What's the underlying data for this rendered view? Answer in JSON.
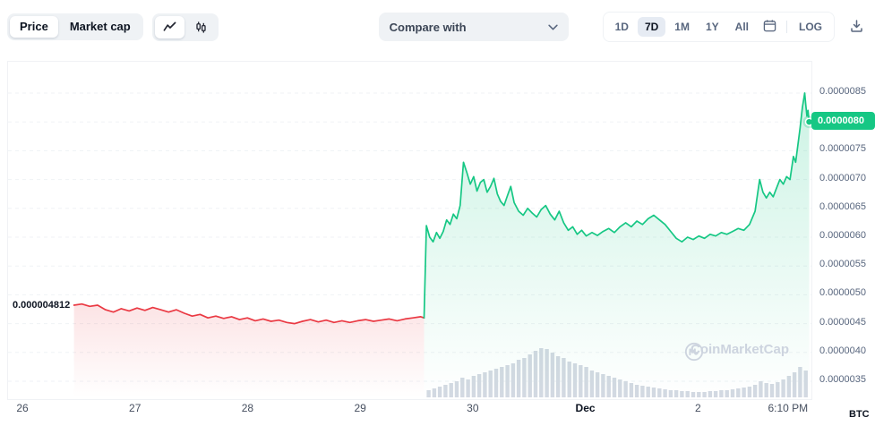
{
  "toolbar": {
    "price_label": "Price",
    "market_cap_label": "Market cap",
    "selected_view": "Price",
    "selected_chart_type": "line",
    "compare_with_label": "Compare with",
    "ranges": [
      "1D",
      "7D",
      "1M",
      "1Y",
      "All"
    ],
    "selected_range": "7D",
    "log_label": "LOG"
  },
  "chart": {
    "watermark": "CoinMarketCap",
    "colors": {
      "up": "#16c784",
      "down": "#ea3943",
      "grid": "#eff2f5",
      "volume": "#d3d9e2",
      "axis_text": "#58667e"
    },
    "icons": {
      "chart_type_line": "line-chart-icon",
      "chart_type_candles": "candlestick-icon",
      "dropdown": "chevron-down-icon",
      "calendar": "calendar-icon",
      "download": "download-icon",
      "watermark_logo": "coinmarketcap-logo"
    }
  },
  "chart_data": {
    "type": "line",
    "ylabel": "BTC",
    "x_unit": "days (Nov 26 - Dec 2)",
    "y_unit": "price in BTC, values shown x 1e-7",
    "x_domain": [
      0,
      7.0
    ],
    "y_domain": [
      3.3,
      8.8
    ],
    "grid": true,
    "y_ticks": [
      {
        "label": "0.0000085",
        "value": 8.5
      },
      {
        "label": "0.0000080",
        "value": 8.0
      },
      {
        "label": "0.0000075",
        "value": 7.5
      },
      {
        "label": "0.0000070",
        "value": 7.0
      },
      {
        "label": "0.0000065",
        "value": 6.5
      },
      {
        "label": "0.0000060",
        "value": 6.0
      },
      {
        "label": "0.0000055",
        "value": 5.5
      },
      {
        "label": "0.0000050",
        "value": 5.0
      },
      {
        "label": "0.0000045",
        "value": 4.5
      },
      {
        "label": "0.0000040",
        "value": 4.0
      },
      {
        "label": "0.0000035",
        "value": 3.5
      }
    ],
    "x_ticks": [
      {
        "label": "26",
        "x": 0
      },
      {
        "label": "27",
        "x": 1
      },
      {
        "label": "28",
        "x": 2
      },
      {
        "label": "29",
        "x": 3
      },
      {
        "label": "30",
        "x": 4
      },
      {
        "label": "Dec",
        "x": 5,
        "bold": true
      },
      {
        "label": "2",
        "x": 6
      },
      {
        "label": "6:10 PM",
        "x": 6.8
      }
    ],
    "series": [
      {
        "name": "price-down-segment",
        "trend": "down",
        "color": "#ea3943",
        "points": [
          [
            0.45,
            4.82
          ],
          [
            0.52,
            4.84
          ],
          [
            0.59,
            4.8
          ],
          [
            0.66,
            4.82
          ],
          [
            0.73,
            4.74
          ],
          [
            0.8,
            4.7
          ],
          [
            0.87,
            4.76
          ],
          [
            0.94,
            4.72
          ],
          [
            1.01,
            4.77
          ],
          [
            1.08,
            4.73
          ],
          [
            1.15,
            4.78
          ],
          [
            1.22,
            4.74
          ],
          [
            1.29,
            4.7
          ],
          [
            1.36,
            4.74
          ],
          [
            1.43,
            4.68
          ],
          [
            1.5,
            4.63
          ],
          [
            1.57,
            4.66
          ],
          [
            1.64,
            4.6
          ],
          [
            1.71,
            4.63
          ],
          [
            1.78,
            4.59
          ],
          [
            1.85,
            4.62
          ],
          [
            1.92,
            4.57
          ],
          [
            1.99,
            4.6
          ],
          [
            2.06,
            4.55
          ],
          [
            2.13,
            4.58
          ],
          [
            2.2,
            4.54
          ],
          [
            2.27,
            4.56
          ],
          [
            2.34,
            4.52
          ],
          [
            2.41,
            4.5
          ],
          [
            2.48,
            4.54
          ],
          [
            2.55,
            4.57
          ],
          [
            2.62,
            4.53
          ],
          [
            2.69,
            4.56
          ],
          [
            2.76,
            4.52
          ],
          [
            2.83,
            4.55
          ],
          [
            2.9,
            4.52
          ],
          [
            2.97,
            4.55
          ],
          [
            3.04,
            4.57
          ],
          [
            3.11,
            4.54
          ],
          [
            3.18,
            4.56
          ],
          [
            3.25,
            4.58
          ],
          [
            3.32,
            4.55
          ],
          [
            3.39,
            4.58
          ],
          [
            3.46,
            4.6
          ],
          [
            3.53,
            4.62
          ],
          [
            3.56,
            4.6
          ]
        ]
      },
      {
        "name": "price-up-segment",
        "trend": "up",
        "color": "#16c784",
        "points": [
          [
            3.56,
            4.6
          ],
          [
            3.58,
            6.2
          ],
          [
            3.61,
            6.0
          ],
          [
            3.64,
            5.92
          ],
          [
            3.67,
            6.08
          ],
          [
            3.7,
            5.98
          ],
          [
            3.73,
            6.1
          ],
          [
            3.76,
            6.3
          ],
          [
            3.79,
            6.22
          ],
          [
            3.82,
            6.4
          ],
          [
            3.85,
            6.32
          ],
          [
            3.88,
            6.55
          ],
          [
            3.91,
            7.3
          ],
          [
            3.94,
            7.12
          ],
          [
            3.97,
            6.92
          ],
          [
            4.0,
            7.05
          ],
          [
            4.03,
            6.8
          ],
          [
            4.06,
            6.95
          ],
          [
            4.09,
            7.0
          ],
          [
            4.12,
            6.78
          ],
          [
            4.15,
            6.88
          ],
          [
            4.18,
            7.02
          ],
          [
            4.21,
            6.75
          ],
          [
            4.24,
            6.62
          ],
          [
            4.27,
            6.55
          ],
          [
            4.3,
            6.72
          ],
          [
            4.33,
            6.88
          ],
          [
            4.36,
            6.6
          ],
          [
            4.4,
            6.45
          ],
          [
            4.44,
            6.38
          ],
          [
            4.48,
            6.5
          ],
          [
            4.52,
            6.42
          ],
          [
            4.56,
            6.35
          ],
          [
            4.6,
            6.48
          ],
          [
            4.64,
            6.55
          ],
          [
            4.68,
            6.4
          ],
          [
            4.72,
            6.3
          ],
          [
            4.76,
            6.45
          ],
          [
            4.8,
            6.25
          ],
          [
            4.84,
            6.12
          ],
          [
            4.88,
            6.18
          ],
          [
            4.92,
            6.05
          ],
          [
            4.96,
            6.12
          ],
          [
            5.0,
            6.02
          ],
          [
            5.05,
            6.08
          ],
          [
            5.1,
            6.03
          ],
          [
            5.15,
            6.1
          ],
          [
            5.2,
            6.15
          ],
          [
            5.25,
            6.08
          ],
          [
            5.3,
            6.18
          ],
          [
            5.35,
            6.25
          ],
          [
            5.4,
            6.18
          ],
          [
            5.45,
            6.28
          ],
          [
            5.5,
            6.22
          ],
          [
            5.55,
            6.32
          ],
          [
            5.6,
            6.38
          ],
          [
            5.65,
            6.3
          ],
          [
            5.7,
            6.22
          ],
          [
            5.75,
            6.1
          ],
          [
            5.8,
            5.98
          ],
          [
            5.85,
            5.92
          ],
          [
            5.9,
            6.0
          ],
          [
            5.95,
            5.96
          ],
          [
            6.0,
            6.02
          ],
          [
            6.05,
            5.98
          ],
          [
            6.1,
            6.05
          ],
          [
            6.15,
            6.02
          ],
          [
            6.2,
            6.08
          ],
          [
            6.25,
            6.05
          ],
          [
            6.3,
            6.1
          ],
          [
            6.35,
            6.15
          ],
          [
            6.4,
            6.12
          ],
          [
            6.45,
            6.22
          ],
          [
            6.5,
            6.45
          ],
          [
            6.54,
            7.0
          ],
          [
            6.57,
            6.78
          ],
          [
            6.6,
            6.68
          ],
          [
            6.63,
            6.78
          ],
          [
            6.66,
            6.7
          ],
          [
            6.69,
            6.85
          ],
          [
            6.72,
            7.0
          ],
          [
            6.75,
            6.92
          ],
          [
            6.78,
            7.05
          ],
          [
            6.81,
            7.0
          ],
          [
            6.84,
            7.4
          ],
          [
            6.86,
            7.3
          ],
          [
            6.88,
            7.6
          ],
          [
            6.9,
            7.9
          ],
          [
            6.92,
            8.25
          ],
          [
            6.94,
            8.5
          ],
          [
            6.95,
            8.3
          ],
          [
            6.96,
            8.1
          ],
          [
            6.97,
            8.2
          ],
          [
            6.98,
            8.0
          ]
        ]
      }
    ],
    "volume_bars": {
      "color": "#d3d9e2",
      "points": [
        [
          3.6,
          8
        ],
        [
          3.65,
          10
        ],
        [
          3.7,
          12
        ],
        [
          3.75,
          14
        ],
        [
          3.8,
          16
        ],
        [
          3.85,
          18
        ],
        [
          3.9,
          22
        ],
        [
          3.95,
          20
        ],
        [
          4.0,
          24
        ],
        [
          4.05,
          26
        ],
        [
          4.1,
          28
        ],
        [
          4.15,
          30
        ],
        [
          4.2,
          32
        ],
        [
          4.25,
          34
        ],
        [
          4.3,
          36
        ],
        [
          4.35,
          38
        ],
        [
          4.4,
          42
        ],
        [
          4.45,
          44
        ],
        [
          4.5,
          48
        ],
        [
          4.55,
          52
        ],
        [
          4.6,
          55
        ],
        [
          4.65,
          54
        ],
        [
          4.7,
          50
        ],
        [
          4.75,
          46
        ],
        [
          4.8,
          44
        ],
        [
          4.85,
          40
        ],
        [
          4.9,
          38
        ],
        [
          4.95,
          36
        ],
        [
          5.0,
          34
        ],
        [
          5.05,
          30
        ],
        [
          5.1,
          28
        ],
        [
          5.15,
          26
        ],
        [
          5.2,
          24
        ],
        [
          5.25,
          22
        ],
        [
          5.3,
          20
        ],
        [
          5.35,
          18
        ],
        [
          5.4,
          16
        ],
        [
          5.45,
          14
        ],
        [
          5.5,
          13
        ],
        [
          5.55,
          12
        ],
        [
          5.6,
          11
        ],
        [
          5.65,
          10
        ],
        [
          5.7,
          9
        ],
        [
          5.75,
          8
        ],
        [
          5.8,
          8
        ],
        [
          5.85,
          7
        ],
        [
          5.9,
          7
        ],
        [
          5.95,
          6
        ],
        [
          6.0,
          6
        ],
        [
          6.05,
          6
        ],
        [
          6.1,
          7
        ],
        [
          6.15,
          7
        ],
        [
          6.2,
          8
        ],
        [
          6.25,
          8
        ],
        [
          6.3,
          9
        ],
        [
          6.35,
          10
        ],
        [
          6.4,
          11
        ],
        [
          6.45,
          12
        ],
        [
          6.5,
          14
        ],
        [
          6.55,
          18
        ],
        [
          6.6,
          16
        ],
        [
          6.65,
          15
        ],
        [
          6.7,
          17
        ],
        [
          6.75,
          20
        ],
        [
          6.8,
          24
        ],
        [
          6.85,
          28
        ],
        [
          6.9,
          34
        ],
        [
          6.95,
          30
        ]
      ]
    },
    "annotations": {
      "open_price_label": "0.000004812",
      "open_price_value": 4.812,
      "last_price_label": "0.0000080",
      "last_price_value": 8.0,
      "last_time_label": "6:10 PM",
      "unit": "BTC"
    }
  }
}
